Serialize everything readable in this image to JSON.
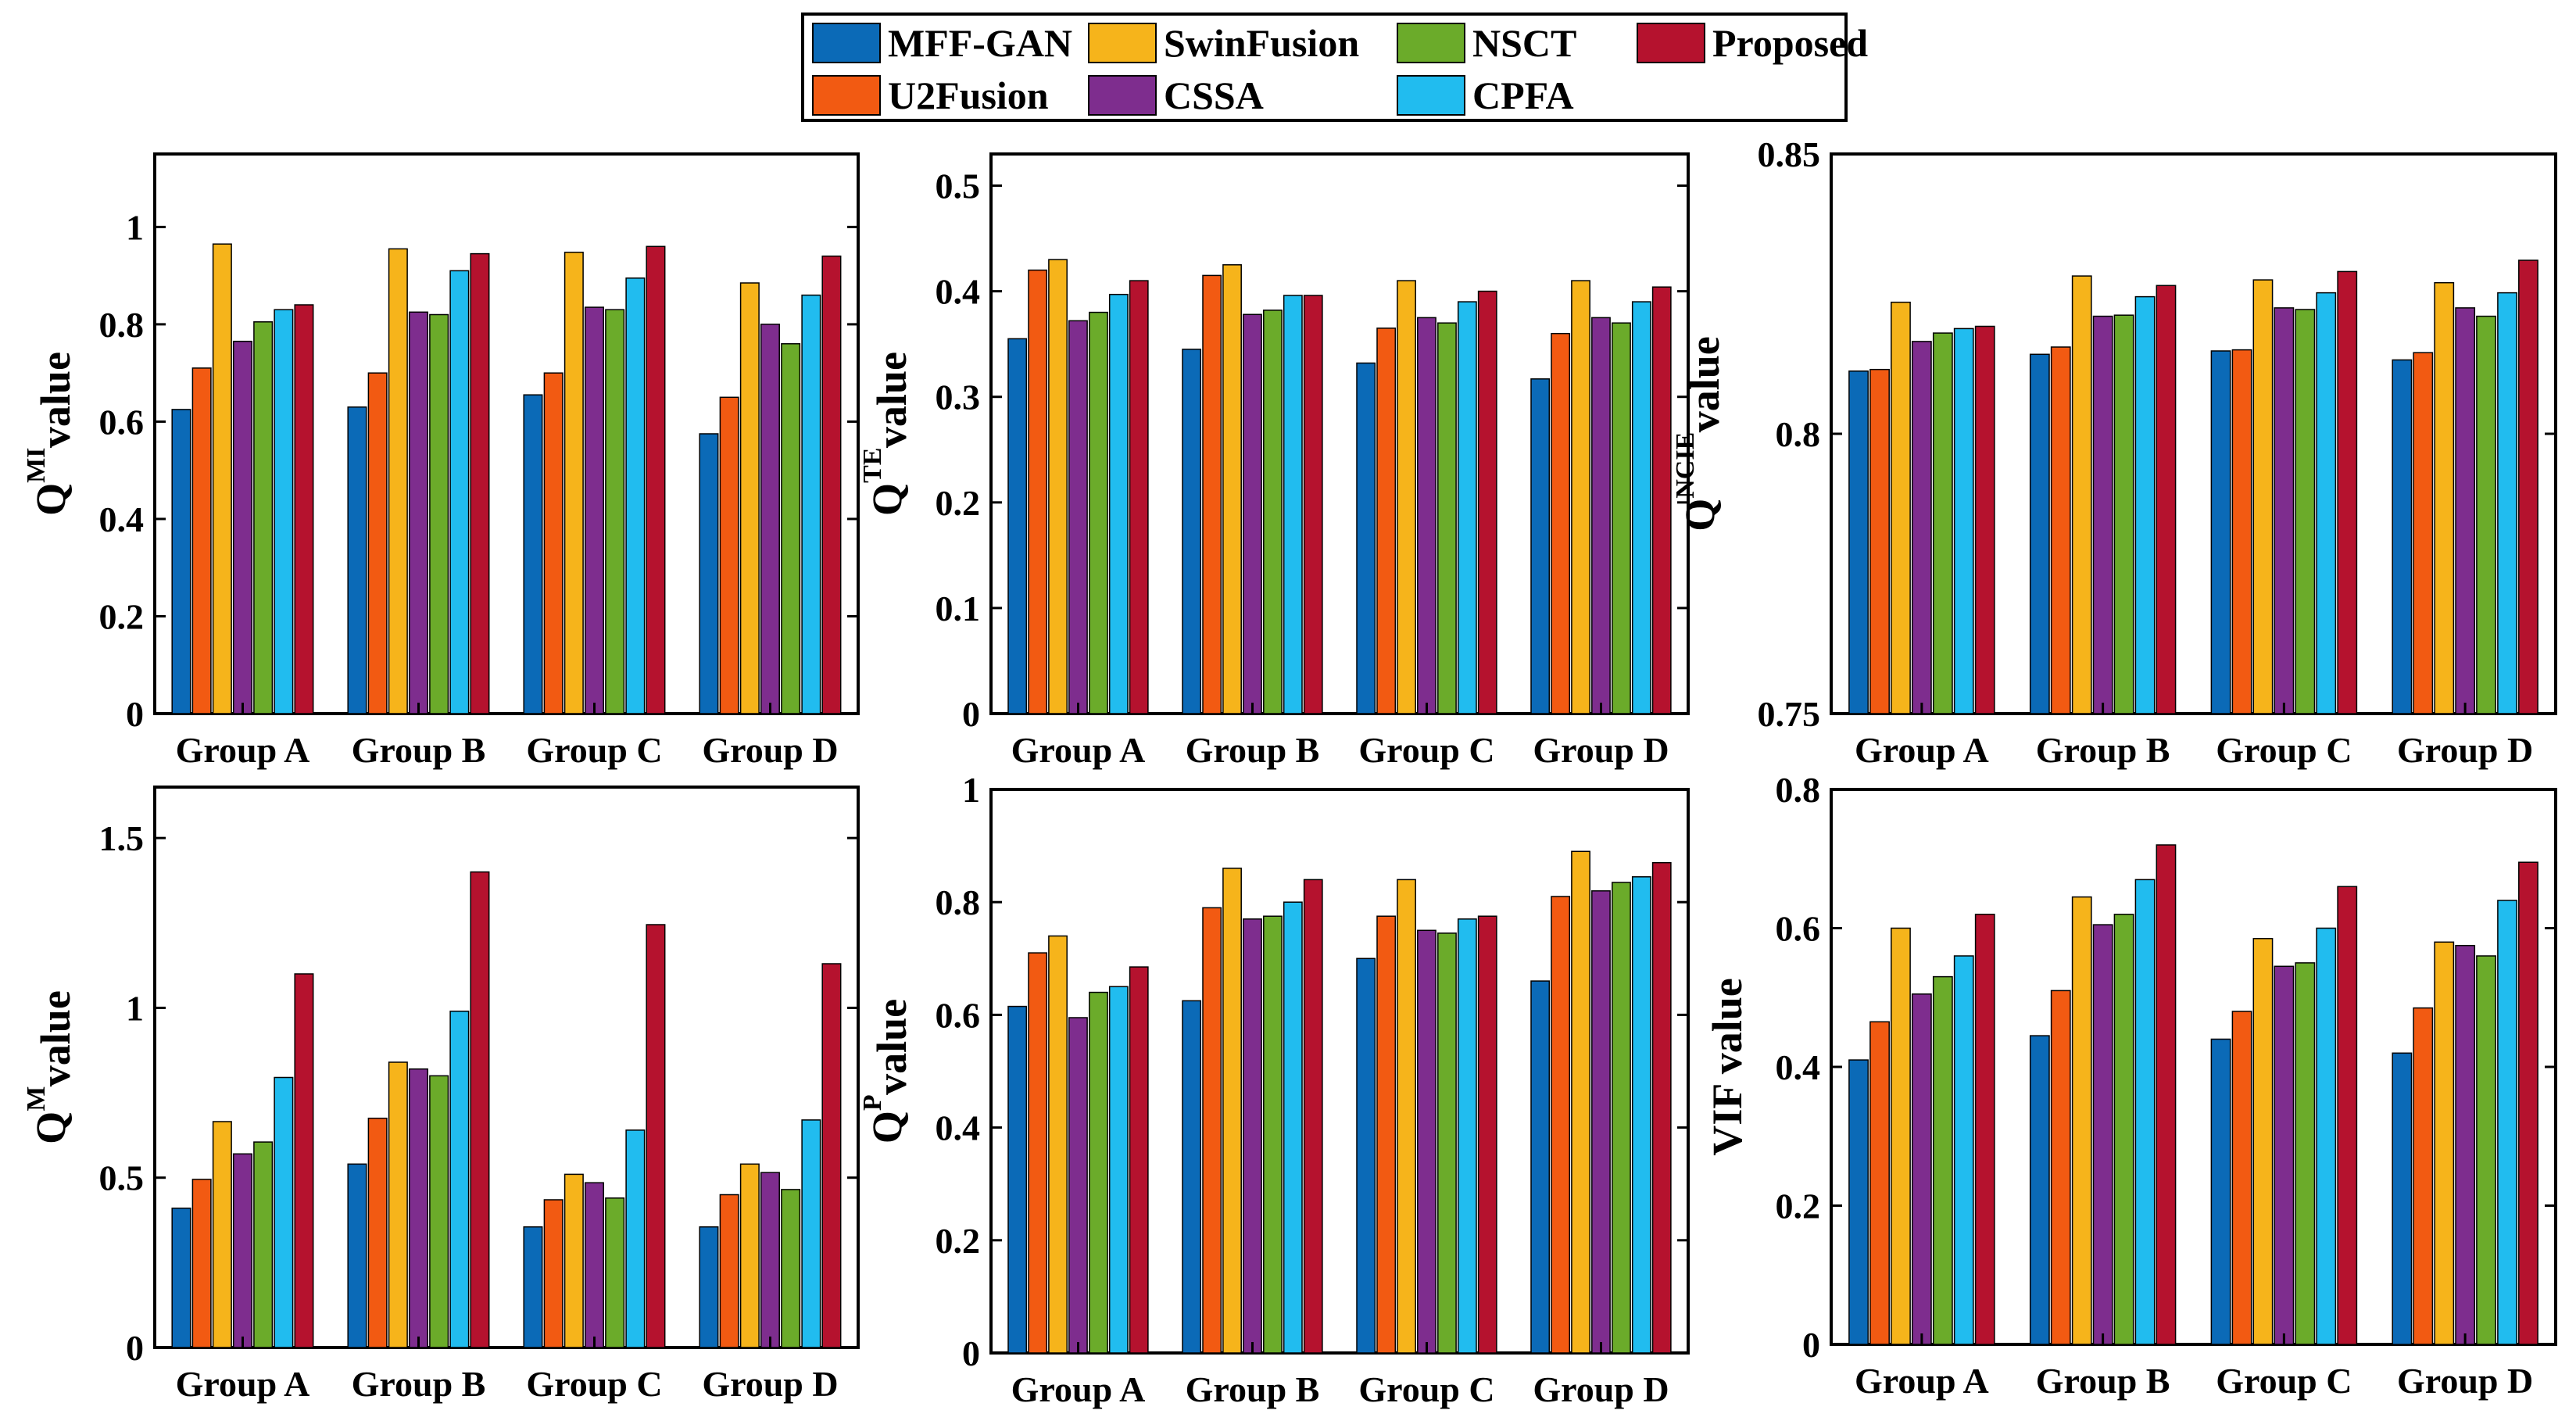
{
  "colors": {
    "MFF-GAN": "#0B6AB7",
    "U2Fusion": "#F25A12",
    "SwinFusion": "#F6B41B",
    "CSSA": "#7E2D8E",
    "NSCT": "#6BAB2A",
    "CPFA": "#21BCEF",
    "Proposed": "#B5122E"
  },
  "legend": {
    "entries": [
      "MFF-GAN",
      "SwinFusion",
      "NSCT",
      "Proposed",
      "U2Fusion",
      "CSSA",
      "CPFA"
    ],
    "placement": "top-center"
  },
  "chart_data": [
    {
      "type": "bar",
      "ylabel": {
        "main": "Q",
        "sup": "MI",
        "sub": "value"
      },
      "categories": [
        "Group A",
        "Group B",
        "Group C",
        "Group D"
      ],
      "ylim": [
        0,
        1.15
      ],
      "yticks": [
        0,
        0.2,
        0.4,
        0.6,
        0.8,
        1
      ],
      "ytick_labels": [
        "0",
        "0.2",
        "0.4",
        "0.6",
        "0.8",
        "1"
      ],
      "series": [
        {
          "name": "MFF-GAN",
          "values": [
            0.625,
            0.63,
            0.655,
            0.575
          ]
        },
        {
          "name": "U2Fusion",
          "values": [
            0.71,
            0.7,
            0.7,
            0.65
          ]
        },
        {
          "name": "SwinFusion",
          "values": [
            0.965,
            0.955,
            0.948,
            0.885
          ]
        },
        {
          "name": "CSSA",
          "values": [
            0.765,
            0.825,
            0.835,
            0.8
          ]
        },
        {
          "name": "NSCT",
          "values": [
            0.805,
            0.82,
            0.83,
            0.76
          ]
        },
        {
          "name": "CPFA",
          "values": [
            0.83,
            0.91,
            0.895,
            0.86
          ]
        },
        {
          "name": "Proposed",
          "values": [
            0.84,
            0.945,
            0.96,
            0.94
          ]
        }
      ]
    },
    {
      "type": "bar",
      "ylabel": {
        "main": "Q",
        "sup": "TE",
        "sub": "value"
      },
      "categories": [
        "Group A",
        "Group B",
        "Group C",
        "Group D"
      ],
      "ylim": [
        0,
        0.53
      ],
      "yticks": [
        0,
        0.1,
        0.2,
        0.3,
        0.4,
        0.5
      ],
      "ytick_labels": [
        "0",
        "0.1",
        "0.2",
        "0.3",
        "0.4",
        "0.5"
      ],
      "series": [
        {
          "name": "MFF-GAN",
          "values": [
            0.355,
            0.345,
            0.332,
            0.317
          ]
        },
        {
          "name": "U2Fusion",
          "values": [
            0.42,
            0.415,
            0.365,
            0.36
          ]
        },
        {
          "name": "SwinFusion",
          "values": [
            0.43,
            0.425,
            0.41,
            0.41
          ]
        },
        {
          "name": "CSSA",
          "values": [
            0.372,
            0.378,
            0.375,
            0.375
          ]
        },
        {
          "name": "NSCT",
          "values": [
            0.38,
            0.382,
            0.37,
            0.37
          ]
        },
        {
          "name": "CPFA",
          "values": [
            0.397,
            0.396,
            0.39,
            0.39
          ]
        },
        {
          "name": "Proposed",
          "values": [
            0.41,
            0.396,
            0.4,
            0.404
          ]
        }
      ]
    },
    {
      "type": "bar",
      "ylabel": {
        "main": "Q",
        "sup": "NCIE",
        "sub": "value"
      },
      "categories": [
        "Group A",
        "Group B",
        "Group C",
        "Group D"
      ],
      "ylim": [
        0.75,
        0.85
      ],
      "yticks": [
        0.75,
        0.8,
        0.85
      ],
      "ytick_labels": [
        "0.75",
        "0.8",
        "0.85"
      ],
      "series": [
        {
          "name": "MFF-GAN",
          "values": [
            0.8112,
            0.8142,
            0.8148,
            0.8132
          ]
        },
        {
          "name": "U2Fusion",
          "values": [
            0.8115,
            0.8155,
            0.815,
            0.8145
          ]
        },
        {
          "name": "SwinFusion",
          "values": [
            0.8235,
            0.8282,
            0.8275,
            0.827
          ]
        },
        {
          "name": "CSSA",
          "values": [
            0.8165,
            0.821,
            0.8225,
            0.8225
          ]
        },
        {
          "name": "NSCT",
          "values": [
            0.818,
            0.8212,
            0.8222,
            0.821
          ]
        },
        {
          "name": "CPFA",
          "values": [
            0.8188,
            0.8245,
            0.8252,
            0.8252
          ]
        },
        {
          "name": "Proposed",
          "values": [
            0.8192,
            0.8265,
            0.829,
            0.831
          ]
        }
      ]
    },
    {
      "type": "bar",
      "ylabel": {
        "main": "Q",
        "sup": "M",
        "sub": "value"
      },
      "categories": [
        "Group A",
        "Group B",
        "Group C",
        "Group D"
      ],
      "ylim": [
        0,
        1.65
      ],
      "yticks": [
        0,
        0.5,
        1,
        1.5
      ],
      "ytick_labels": [
        "0",
        "0.5",
        "1",
        "1.5"
      ],
      "series": [
        {
          "name": "MFF-GAN",
          "values": [
            0.41,
            0.54,
            0.355,
            0.355
          ]
        },
        {
          "name": "U2Fusion",
          "values": [
            0.495,
            0.675,
            0.435,
            0.45
          ]
        },
        {
          "name": "SwinFusion",
          "values": [
            0.665,
            0.84,
            0.51,
            0.54
          ]
        },
        {
          "name": "CSSA",
          "values": [
            0.57,
            0.82,
            0.485,
            0.515
          ]
        },
        {
          "name": "NSCT",
          "values": [
            0.605,
            0.8,
            0.44,
            0.465
          ]
        },
        {
          "name": "CPFA",
          "values": [
            0.795,
            0.99,
            0.64,
            0.67
          ]
        },
        {
          "name": "Proposed",
          "values": [
            1.1,
            1.4,
            1.245,
            1.13
          ]
        }
      ]
    },
    {
      "type": "bar",
      "ylabel": {
        "main": "Q",
        "sup": "P",
        "sub": "value"
      },
      "categories": [
        "Group A",
        "Group B",
        "Group C",
        "Group D"
      ],
      "ylim": [
        0,
        1
      ],
      "yticks": [
        0,
        0.2,
        0.4,
        0.6,
        0.8,
        1
      ],
      "ytick_labels": [
        "0",
        "0.2",
        "0.4",
        "0.6",
        "0.8",
        "1"
      ],
      "series": [
        {
          "name": "MFF-GAN",
          "values": [
            0.615,
            0.625,
            0.7,
            0.66
          ]
        },
        {
          "name": "U2Fusion",
          "values": [
            0.71,
            0.79,
            0.775,
            0.81
          ]
        },
        {
          "name": "SwinFusion",
          "values": [
            0.74,
            0.86,
            0.84,
            0.89
          ]
        },
        {
          "name": "CSSA",
          "values": [
            0.595,
            0.77,
            0.75,
            0.82
          ]
        },
        {
          "name": "NSCT",
          "values": [
            0.64,
            0.775,
            0.745,
            0.835
          ]
        },
        {
          "name": "CPFA",
          "values": [
            0.65,
            0.8,
            0.77,
            0.845
          ]
        },
        {
          "name": "Proposed",
          "values": [
            0.685,
            0.84,
            0.775,
            0.87
          ]
        }
      ]
    },
    {
      "type": "bar",
      "ylabel": {
        "main": "VIF",
        "sup": "",
        "sub": "value"
      },
      "categories": [
        "Group A",
        "Group B",
        "Group C",
        "Group D"
      ],
      "ylim": [
        0,
        0.8
      ],
      "yticks": [
        0,
        0.2,
        0.4,
        0.6,
        0.8
      ],
      "ytick_labels": [
        "0",
        "0.2",
        "0.4",
        "0.6",
        "0.8"
      ],
      "series": [
        {
          "name": "MFF-GAN",
          "values": [
            0.41,
            0.445,
            0.44,
            0.42
          ]
        },
        {
          "name": "U2Fusion",
          "values": [
            0.465,
            0.51,
            0.48,
            0.485
          ]
        },
        {
          "name": "SwinFusion",
          "values": [
            0.6,
            0.645,
            0.585,
            0.58
          ]
        },
        {
          "name": "CSSA",
          "values": [
            0.505,
            0.605,
            0.545,
            0.575
          ]
        },
        {
          "name": "NSCT",
          "values": [
            0.53,
            0.62,
            0.55,
            0.56
          ]
        },
        {
          "name": "CPFA",
          "values": [
            0.56,
            0.67,
            0.6,
            0.64
          ]
        },
        {
          "name": "Proposed",
          "values": [
            0.62,
            0.72,
            0.66,
            0.695
          ]
        }
      ]
    }
  ]
}
